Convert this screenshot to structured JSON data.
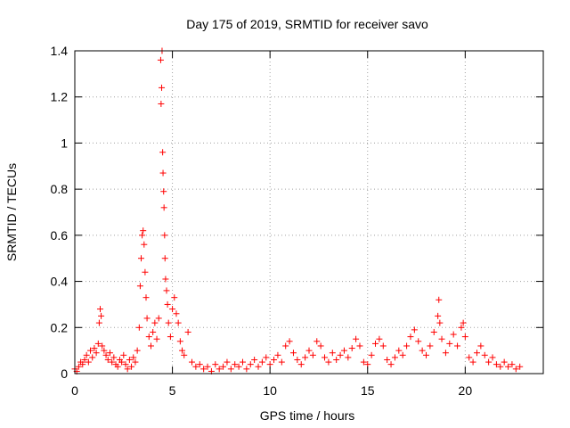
{
  "chart_data": {
    "type": "scatter",
    "title": "Day 175 of 2019, SRMTID for receiver savo",
    "xlabel": "GPS time / hours",
    "ylabel": "SRMTID / TECUs",
    "xlim": [
      0,
      24
    ],
    "ylim": [
      0,
      1.4
    ],
    "xticks": [
      0,
      5,
      10,
      15,
      20
    ],
    "xtick_labels": [
      "0",
      "5",
      "10",
      "15",
      "20"
    ],
    "yticks": [
      0,
      0.2,
      0.4,
      0.6,
      0.8,
      1.0,
      1.2,
      1.4
    ],
    "ytick_labels": [
      "0",
      "0.2",
      "0.4",
      "0.6",
      "0.8",
      "1",
      "1.2",
      "1.4"
    ],
    "grid": true,
    "marker": "+",
    "marker_color": "#ff0000",
    "series": [
      {
        "name": "SRMTID",
        "points": [
          [
            0.0,
            0.02
          ],
          [
            0.1,
            0.01
          ],
          [
            0.2,
            0.03
          ],
          [
            0.3,
            0.05
          ],
          [
            0.4,
            0.04
          ],
          [
            0.5,
            0.06
          ],
          [
            0.6,
            0.08
          ],
          [
            0.7,
            0.05
          ],
          [
            0.8,
            0.1
          ],
          [
            0.9,
            0.07
          ],
          [
            1.0,
            0.11
          ],
          [
            1.1,
            0.09
          ],
          [
            1.2,
            0.13
          ],
          [
            1.25,
            0.22
          ],
          [
            1.3,
            0.28
          ],
          [
            1.35,
            0.25
          ],
          [
            1.4,
            0.12
          ],
          [
            1.5,
            0.1
          ],
          [
            1.6,
            0.08
          ],
          [
            1.7,
            0.06
          ],
          [
            1.8,
            0.09
          ],
          [
            1.9,
            0.05
          ],
          [
            2.0,
            0.07
          ],
          [
            2.1,
            0.04
          ],
          [
            2.2,
            0.03
          ],
          [
            2.3,
            0.06
          ],
          [
            2.4,
            0.05
          ],
          [
            2.5,
            0.08
          ],
          [
            2.6,
            0.04
          ],
          [
            2.7,
            0.02
          ],
          [
            2.8,
            0.06
          ],
          [
            2.9,
            0.03
          ],
          [
            3.0,
            0.07
          ],
          [
            3.1,
            0.05
          ],
          [
            3.2,
            0.1
          ],
          [
            3.3,
            0.2
          ],
          [
            3.35,
            0.38
          ],
          [
            3.4,
            0.5
          ],
          [
            3.45,
            0.6
          ],
          [
            3.5,
            0.62
          ],
          [
            3.55,
            0.56
          ],
          [
            3.6,
            0.44
          ],
          [
            3.65,
            0.33
          ],
          [
            3.7,
            0.24
          ],
          [
            3.8,
            0.16
          ],
          [
            3.9,
            0.12
          ],
          [
            4.0,
            0.18
          ],
          [
            4.1,
            0.22
          ],
          [
            4.2,
            0.15
          ],
          [
            4.3,
            0.24
          ],
          [
            4.4,
            1.36
          ],
          [
            4.42,
            1.17
          ],
          [
            4.45,
            1.24
          ],
          [
            4.47,
            1.4
          ],
          [
            4.5,
            0.96
          ],
          [
            4.52,
            0.87
          ],
          [
            4.55,
            0.79
          ],
          [
            4.57,
            0.72
          ],
          [
            4.6,
            0.6
          ],
          [
            4.62,
            0.5
          ],
          [
            4.65,
            0.41
          ],
          [
            4.7,
            0.36
          ],
          [
            4.75,
            0.3
          ],
          [
            4.8,
            0.22
          ],
          [
            4.9,
            0.16
          ],
          [
            5.0,
            0.28
          ],
          [
            5.1,
            0.33
          ],
          [
            5.2,
            0.26
          ],
          [
            5.3,
            0.22
          ],
          [
            5.4,
            0.14
          ],
          [
            5.5,
            0.1
          ],
          [
            5.6,
            0.08
          ],
          [
            5.8,
            0.18
          ],
          [
            6.0,
            0.05
          ],
          [
            6.2,
            0.03
          ],
          [
            6.4,
            0.04
          ],
          [
            6.6,
            0.02
          ],
          [
            6.8,
            0.03
          ],
          [
            7.0,
            0.01
          ],
          [
            7.2,
            0.04
          ],
          [
            7.4,
            0.02
          ],
          [
            7.6,
            0.03
          ],
          [
            7.8,
            0.05
          ],
          [
            8.0,
            0.02
          ],
          [
            8.2,
            0.04
          ],
          [
            8.4,
            0.03
          ],
          [
            8.6,
            0.05
          ],
          [
            8.8,
            0.02
          ],
          [
            9.0,
            0.04
          ],
          [
            9.2,
            0.06
          ],
          [
            9.4,
            0.03
          ],
          [
            9.6,
            0.05
          ],
          [
            9.8,
            0.07
          ],
          [
            10.0,
            0.04
          ],
          [
            10.2,
            0.06
          ],
          [
            10.4,
            0.08
          ],
          [
            10.6,
            0.05
          ],
          [
            10.8,
            0.12
          ],
          [
            11.0,
            0.14
          ],
          [
            11.2,
            0.09
          ],
          [
            11.4,
            0.06
          ],
          [
            11.6,
            0.04
          ],
          [
            11.8,
            0.07
          ],
          [
            12.0,
            0.1
          ],
          [
            12.2,
            0.08
          ],
          [
            12.4,
            0.14
          ],
          [
            12.6,
            0.12
          ],
          [
            12.8,
            0.07
          ],
          [
            13.0,
            0.05
          ],
          [
            13.2,
            0.09
          ],
          [
            13.4,
            0.06
          ],
          [
            13.6,
            0.08
          ],
          [
            13.8,
            0.1
          ],
          [
            14.0,
            0.07
          ],
          [
            14.2,
            0.11
          ],
          [
            14.4,
            0.15
          ],
          [
            14.6,
            0.12
          ],
          [
            14.8,
            0.05
          ],
          [
            15.0,
            0.04
          ],
          [
            15.2,
            0.08
          ],
          [
            15.4,
            0.13
          ],
          [
            15.6,
            0.15
          ],
          [
            15.8,
            0.12
          ],
          [
            16.0,
            0.06
          ],
          [
            16.2,
            0.04
          ],
          [
            16.4,
            0.07
          ],
          [
            16.6,
            0.1
          ],
          [
            16.8,
            0.08
          ],
          [
            17.0,
            0.12
          ],
          [
            17.2,
            0.16
          ],
          [
            17.4,
            0.19
          ],
          [
            17.6,
            0.14
          ],
          [
            17.8,
            0.1
          ],
          [
            18.0,
            0.08
          ],
          [
            18.2,
            0.12
          ],
          [
            18.4,
            0.18
          ],
          [
            18.6,
            0.25
          ],
          [
            18.65,
            0.32
          ],
          [
            18.7,
            0.22
          ],
          [
            18.8,
            0.15
          ],
          [
            19.0,
            0.09
          ],
          [
            19.2,
            0.13
          ],
          [
            19.4,
            0.17
          ],
          [
            19.6,
            0.12
          ],
          [
            19.8,
            0.2
          ],
          [
            19.9,
            0.22
          ],
          [
            20.0,
            0.16
          ],
          [
            20.2,
            0.07
          ],
          [
            20.4,
            0.05
          ],
          [
            20.6,
            0.09
          ],
          [
            20.8,
            0.12
          ],
          [
            21.0,
            0.08
          ],
          [
            21.2,
            0.05
          ],
          [
            21.4,
            0.07
          ],
          [
            21.6,
            0.04
          ],
          [
            21.8,
            0.03
          ],
          [
            22.0,
            0.05
          ],
          [
            22.2,
            0.03
          ],
          [
            22.4,
            0.04
          ],
          [
            22.6,
            0.02
          ],
          [
            22.8,
            0.03
          ]
        ]
      }
    ]
  }
}
